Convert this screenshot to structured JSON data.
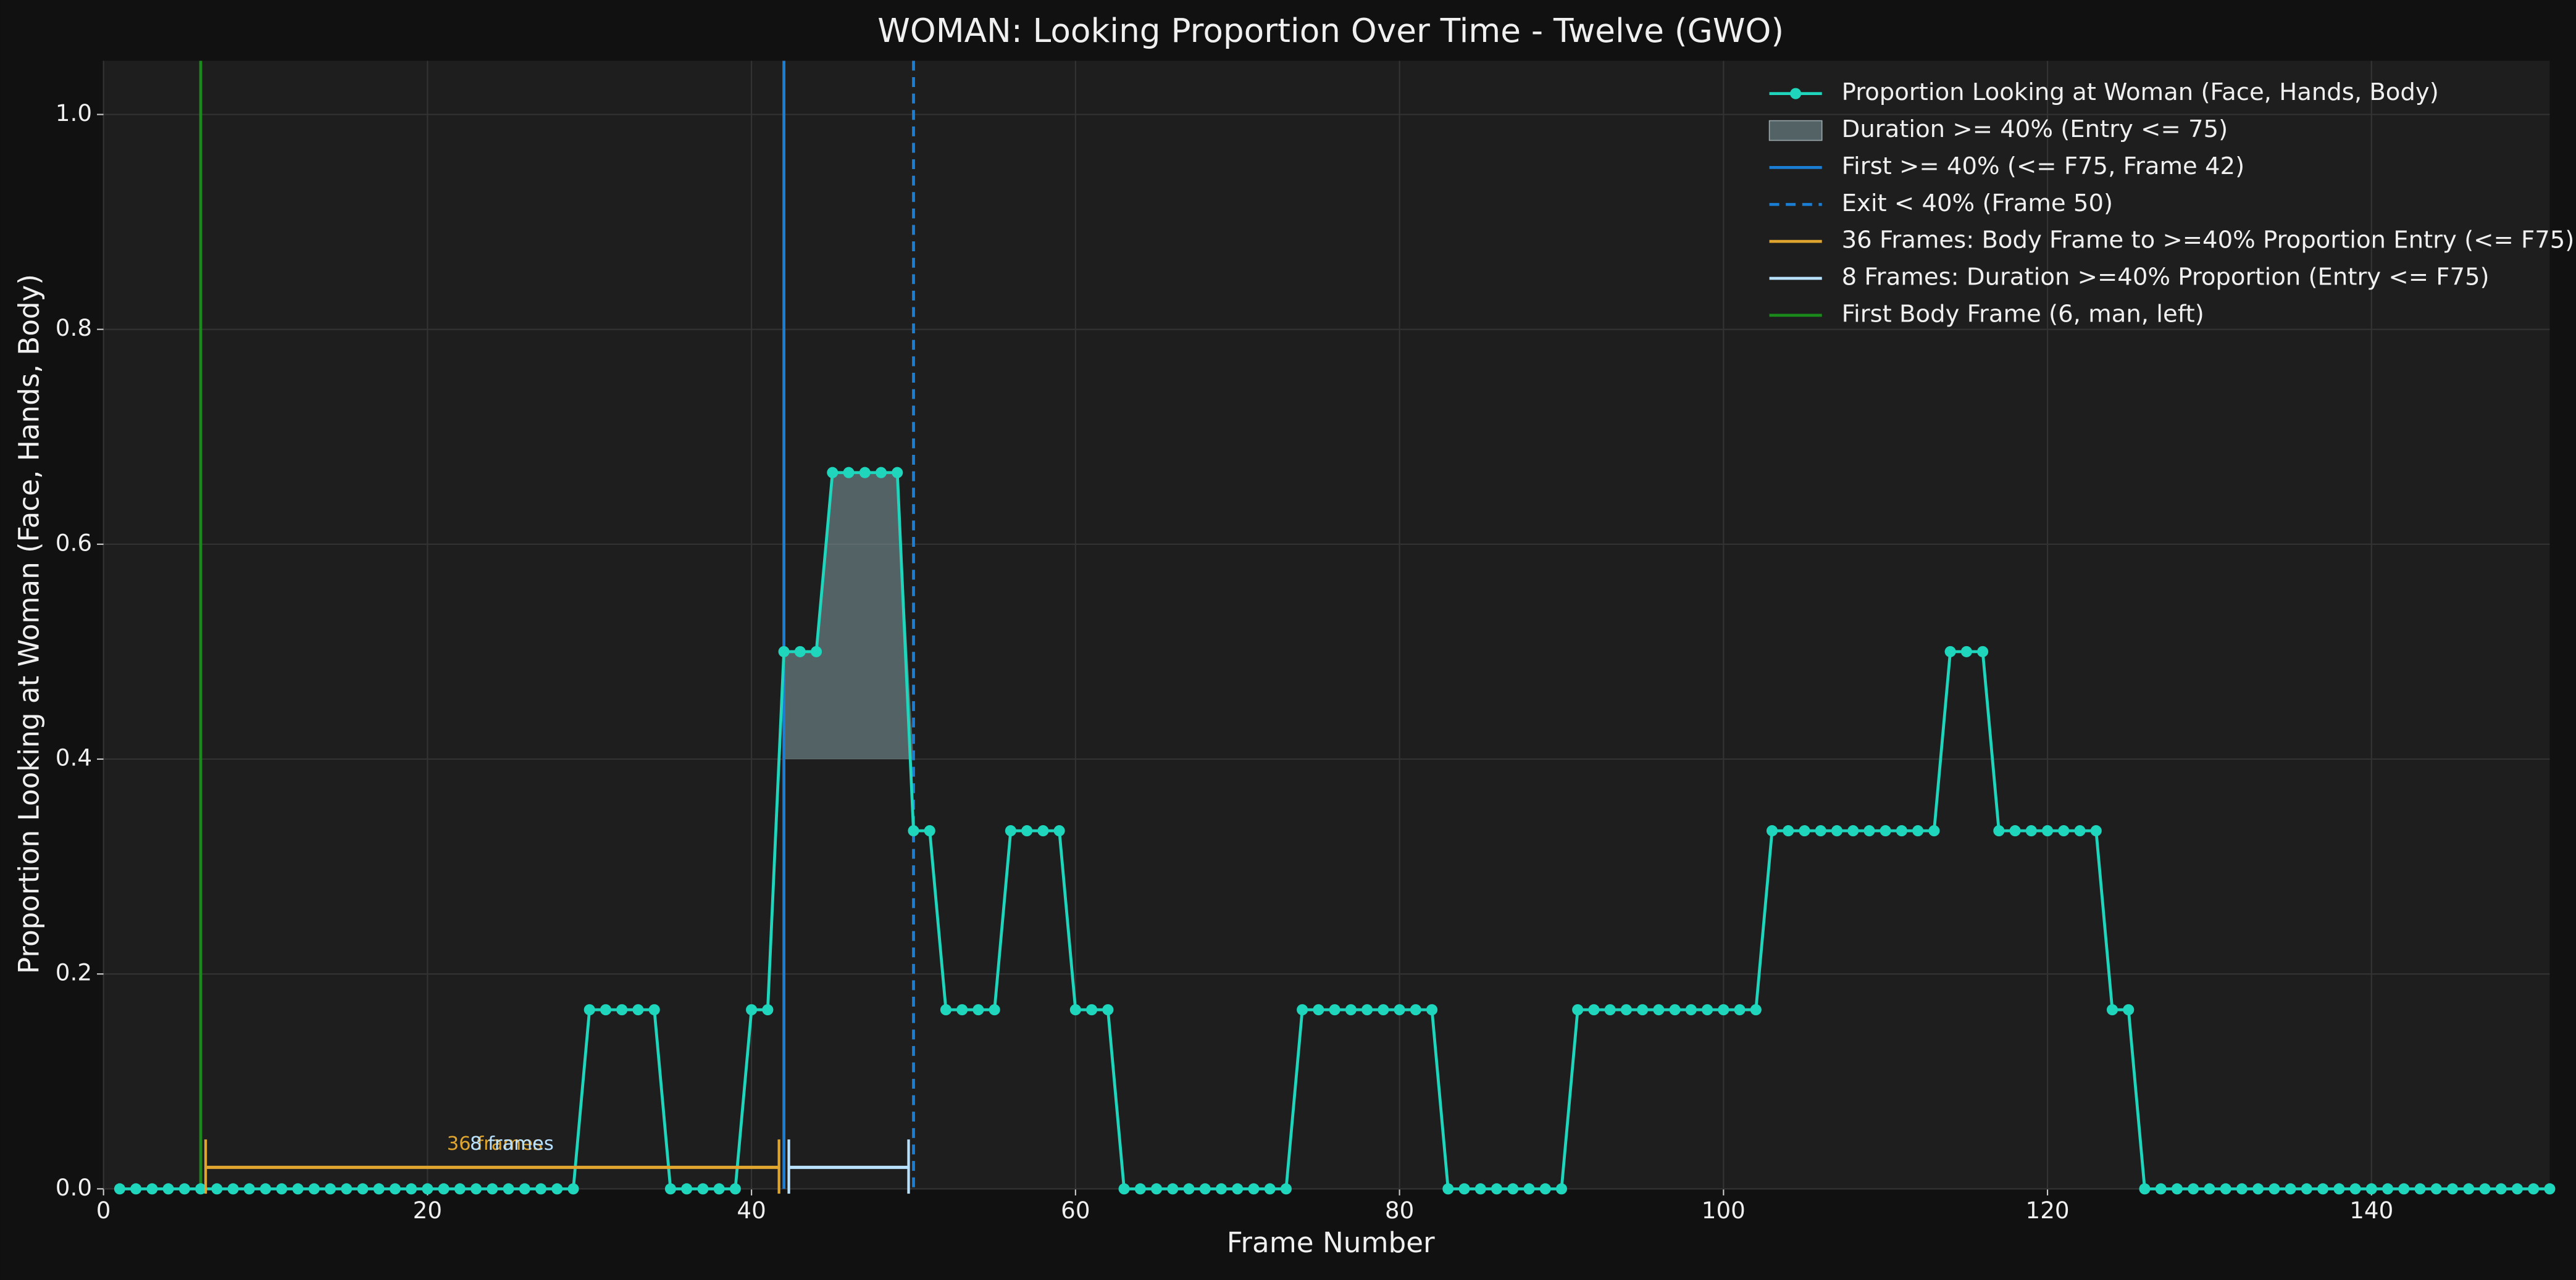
{
  "chart_data": {
    "type": "line",
    "title": "WOMAN: Looking Proportion Over Time - Twelve (GWO)",
    "xlabel": "Frame Number",
    "ylabel": "Proportion Looking at Woman (Face, Hands, Body)",
    "x": [
      1,
      2,
      3,
      4,
      5,
      6,
      7,
      8,
      9,
      10,
      11,
      12,
      13,
      14,
      15,
      16,
      17,
      18,
      19,
      20,
      21,
      22,
      23,
      24,
      25,
      26,
      27,
      28,
      29,
      30,
      31,
      32,
      33,
      34,
      35,
      36,
      37,
      38,
      39,
      40,
      41,
      42,
      43,
      44,
      45,
      46,
      47,
      48,
      49,
      50,
      51,
      52,
      53,
      54,
      55,
      56,
      57,
      58,
      59,
      60,
      61,
      62,
      63,
      64,
      65,
      66,
      67,
      68,
      69,
      70,
      71,
      72,
      73,
      74,
      75,
      76,
      77,
      78,
      79,
      80,
      81,
      82,
      83,
      84,
      85,
      86,
      87,
      88,
      89,
      90,
      91,
      92,
      93,
      94,
      95,
      96,
      97,
      98,
      99,
      100,
      101,
      102,
      103,
      104,
      105,
      106,
      107,
      108,
      109,
      110,
      111,
      112,
      113,
      114,
      115,
      116,
      117,
      118,
      119,
      120,
      121,
      122,
      123,
      124,
      125,
      126,
      127,
      128,
      129,
      130,
      131,
      132,
      133,
      134,
      135,
      136,
      137,
      138,
      139,
      140,
      141,
      142,
      143,
      144,
      145,
      146,
      147,
      148,
      149,
      150,
      151
    ],
    "series": [
      {
        "name": "Proportion Looking at Woman (Face, Hands, Body)",
        "color": "#1fd6bd",
        "values": [
          0,
          0,
          0,
          0,
          0,
          0,
          0,
          0,
          0,
          0,
          0,
          0,
          0,
          0,
          0,
          0,
          0,
          0,
          0,
          0,
          0,
          0,
          0,
          0,
          0,
          0,
          0,
          0,
          0,
          0.1667,
          0.1667,
          0.1667,
          0.1667,
          0.1667,
          0,
          0,
          0,
          0,
          0,
          0.1667,
          0.1667,
          0.5,
          0.5,
          0.5,
          0.6667,
          0.6667,
          0.6667,
          0.6667,
          0.6667,
          0.3333,
          0.3333,
          0.1667,
          0.1667,
          0.1667,
          0.1667,
          0.3333,
          0.3333,
          0.3333,
          0.3333,
          0.1667,
          0.1667,
          0.1667,
          0,
          0,
          0,
          0,
          0,
          0,
          0,
          0,
          0,
          0,
          0,
          0.1667,
          0.1667,
          0.1667,
          0.1667,
          0.1667,
          0.1667,
          0.1667,
          0.1667,
          0.1667,
          0,
          0,
          0,
          0,
          0,
          0,
          0,
          0,
          0.1667,
          0.1667,
          0.1667,
          0.1667,
          0.1667,
          0.1667,
          0.1667,
          0.1667,
          0.1667,
          0.1667,
          0.1667,
          0.1667,
          0.3333,
          0.3333,
          0.3333,
          0.3333,
          0.3333,
          0.3333,
          0.3333,
          0.3333,
          0.3333,
          0.3333,
          0.3333,
          0.5,
          0.5,
          0.5,
          0.3333,
          0.3333,
          0.3333,
          0.3333,
          0.3333,
          0.3333,
          0.3333,
          0.1667,
          0.1667,
          0,
          0,
          0,
          0,
          0,
          0,
          0,
          0,
          0,
          0,
          0,
          0,
          0,
          0,
          0,
          0,
          0,
          0,
          0,
          0,
          0,
          0,
          0,
          0,
          0,
          0
        ]
      }
    ],
    "fill": {
      "name": "Duration >= 40% (Entry <= 75)",
      "x": [
        42,
        50
      ],
      "y0": 0.4,
      "color": "#7f9aa0"
    },
    "vlines": [
      {
        "name": "First >= 40% (<= F75, Frame 42)",
        "x": 42,
        "color": "#1a7fd4",
        "dashed": false
      },
      {
        "name": "Exit < 40% (Frame 50)",
        "x": 50,
        "color": "#1a7fd4",
        "dashed": true
      },
      {
        "name": "First Body Frame (6, man, left)",
        "x": 6,
        "color": "#1a8a1a",
        "dashed": false
      }
    ],
    "brackets": [
      {
        "name": "36 Frames: Body Frame to >=40% Proportion Entry (<= F75)",
        "label": "36 frames",
        "x": [
          6,
          42
        ],
        "y": 0.02,
        "color": "#e0a52e"
      },
      {
        "name": "8 Frames: Duration >=40% Proportion (Entry <= F75)",
        "label": "8 frames",
        "x": [
          42,
          50
        ],
        "y": 0.02,
        "color": "#b8e2ff"
      }
    ],
    "xlim": [
      0,
      151
    ],
    "ylim": [
      0,
      1.05
    ],
    "xticks": [
      0,
      20,
      40,
      60,
      80,
      100,
      120,
      140
    ],
    "yticks": [
      {
        "value": 0,
        "label": "0.0"
      },
      0.2,
      0.4,
      0.6,
      0.8,
      {
        "value": 1,
        "label": "1.0"
      }
    ],
    "grid": true,
    "legend": "upper right"
  }
}
